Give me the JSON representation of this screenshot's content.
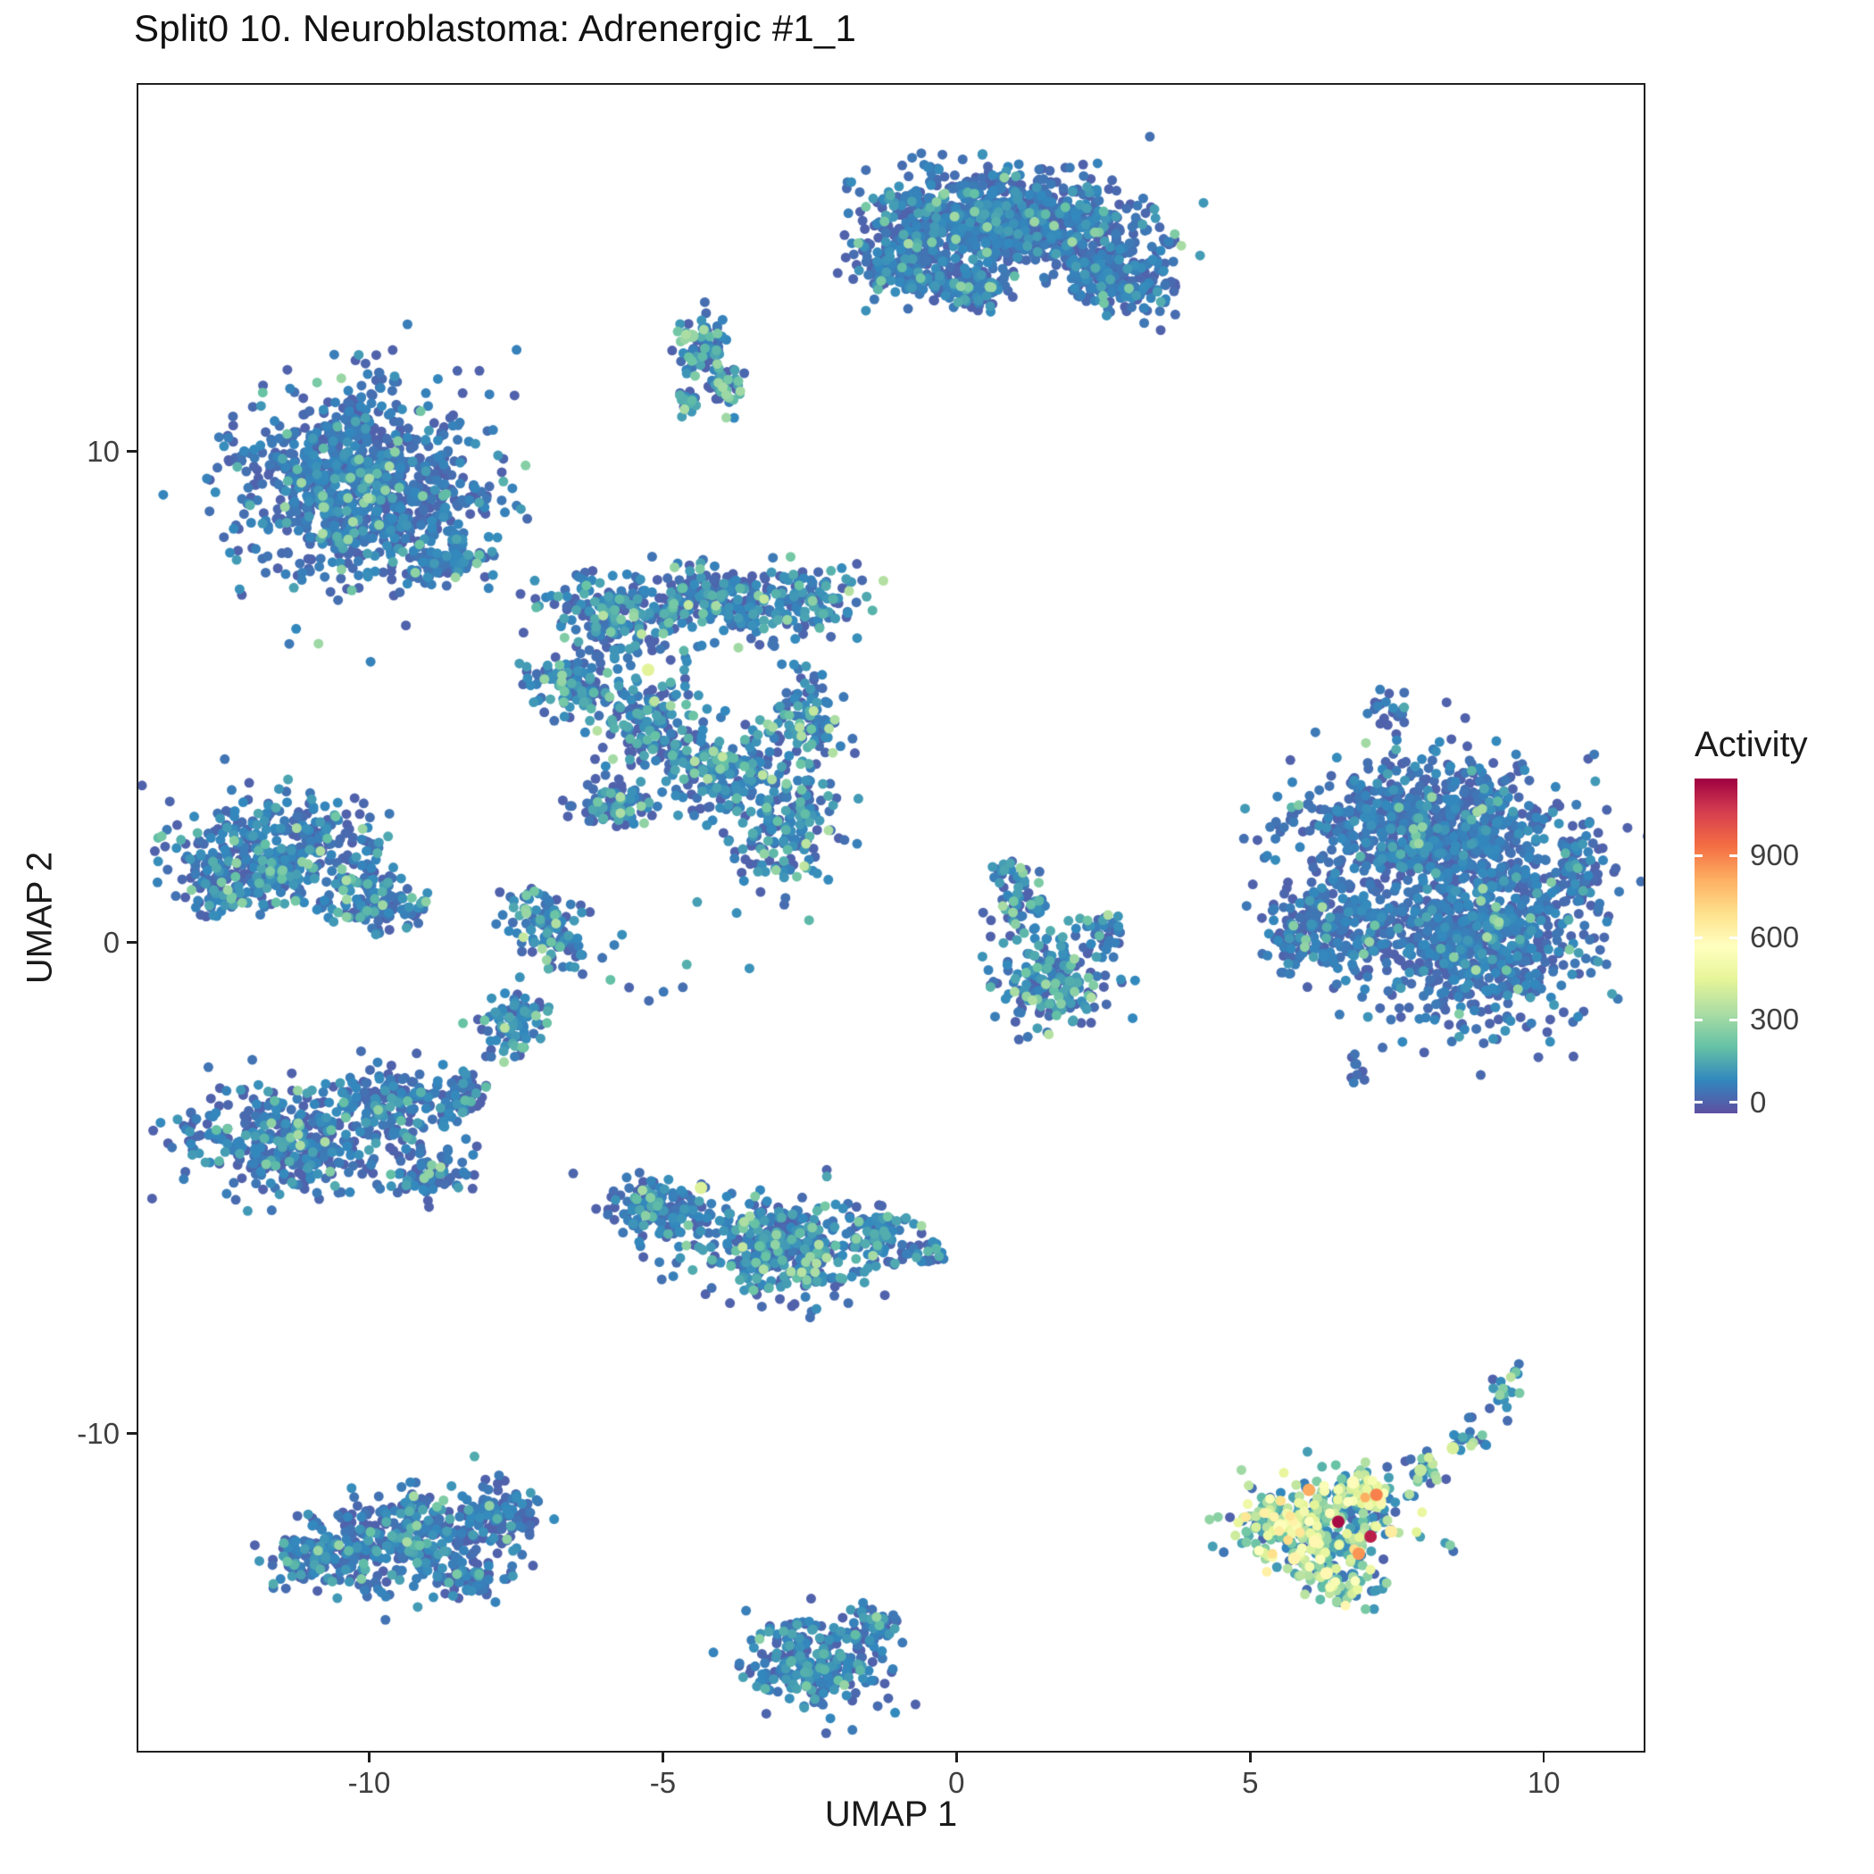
{
  "chart_data": {
    "type": "scatter",
    "subtype": "umap-feature-plot",
    "title": "Split0 10. Neuroblastoma: Adrenergic #1_1",
    "xlabel": "UMAP 1",
    "ylabel": "UMAP 2",
    "xlim": [
      -13.96,
      11.73
    ],
    "ylim": [
      -16.5,
      17.5
    ],
    "x_ticks": [
      -10,
      -5,
      0,
      5,
      10
    ],
    "y_ticks": [
      -10,
      0,
      10
    ],
    "grid": false,
    "point_radius_px": 5.5,
    "seed": 42,
    "legend": {
      "title": "Activity",
      "position": "right",
      "domain": [
        -40,
        1180
      ],
      "ticks": [
        0,
        300,
        600,
        900
      ],
      "colormap": "spectral-reversed",
      "stops": [
        "#5e4fa2",
        "#3288bd",
        "#66c2a5",
        "#abdda4",
        "#e6f598",
        "#ffffbf",
        "#fee08b",
        "#fdae61",
        "#f46d43",
        "#d53e4f",
        "#9e0142"
      ]
    },
    "clusters": [
      {
        "name": "top-large-blob",
        "blobs": [
          [
            0.9,
            14.7,
            2.1,
            0.85,
            -8,
            850
          ],
          [
            -0.9,
            13.9,
            0.9,
            0.7,
            20,
            220
          ],
          [
            2.7,
            13.5,
            0.9,
            0.55,
            -20,
            180
          ],
          [
            0.2,
            13.3,
            0.7,
            0.4,
            0,
            120
          ]
        ],
        "activity": {
          "mean": 35,
          "sd": 45,
          "hi_frac": 0.03,
          "hi_range": [
            150,
            320
          ]
        }
      },
      {
        "name": "small-comma",
        "blobs": [
          [
            -4.35,
            12.2,
            0.35,
            0.5,
            0,
            70
          ],
          [
            -3.95,
            11.3,
            0.3,
            0.45,
            0,
            50
          ],
          [
            -4.6,
            11.0,
            0.2,
            0.3,
            0,
            25
          ]
        ],
        "activity": {
          "mean": 60,
          "sd": 70,
          "hi_frac": 0.18,
          "hi_range": [
            150,
            330
          ]
        }
      },
      {
        "name": "top-left-round",
        "blobs": [
          [
            -10.1,
            9.3,
            1.9,
            1.75,
            0,
            1000
          ],
          [
            -8.6,
            7.8,
            0.6,
            0.5,
            0,
            80
          ]
        ],
        "activity": {
          "mean": 35,
          "sd": 45,
          "hi_frac": 0.04,
          "hi_range": [
            150,
            330
          ]
        }
      },
      {
        "name": "central-network",
        "blobs": [
          [
            -5.6,
            6.7,
            1.3,
            0.75,
            0,
            230
          ],
          [
            -4.2,
            7.1,
            0.9,
            0.55,
            0,
            140
          ],
          [
            -2.7,
            6.9,
            0.95,
            0.65,
            0,
            150
          ],
          [
            -6.6,
            5.3,
            0.65,
            0.6,
            0,
            110
          ],
          [
            -5.3,
            4.5,
            0.8,
            0.85,
            0,
            150
          ],
          [
            -4.0,
            3.5,
            1.0,
            0.75,
            0,
            190
          ],
          [
            -2.6,
            4.4,
            0.55,
            0.95,
            0,
            110
          ],
          [
            -2.9,
            2.3,
            0.8,
            1.15,
            0,
            170
          ],
          [
            -5.8,
            2.8,
            0.6,
            0.5,
            0,
            80
          ],
          [
            -6.9,
            0.3,
            0.5,
            0.85,
            35,
            110
          ],
          [
            -7.6,
            -1.6,
            0.5,
            0.6,
            0,
            90
          ],
          [
            -5.5,
            -0.3,
            1.6,
            1.1,
            0,
            14
          ]
        ],
        "activity": {
          "mean": 55,
          "sd": 65,
          "hi_frac": 0.07,
          "hi_range": [
            150,
            380
          ]
        }
      },
      {
        "name": "left-mid-cluster",
        "blobs": [
          [
            -11.5,
            1.8,
            1.45,
            1.05,
            0,
            400
          ],
          [
            -9.9,
            0.9,
            0.7,
            0.6,
            0,
            120
          ],
          [
            -12.6,
            1.1,
            0.5,
            0.5,
            0,
            70
          ]
        ],
        "activity": {
          "mean": 40,
          "sd": 55,
          "hi_frac": 0.05,
          "hi_range": [
            150,
            330
          ]
        }
      },
      {
        "name": "left-lower-arrow",
        "blobs": [
          [
            -11.4,
            -4.0,
            1.5,
            0.95,
            0,
            400
          ],
          [
            -9.5,
            -3.3,
            0.85,
            0.65,
            0,
            150
          ],
          [
            -9.0,
            -4.7,
            0.65,
            0.5,
            0,
            90
          ],
          [
            -8.3,
            -3.0,
            0.4,
            0.4,
            0,
            40
          ]
        ],
        "activity": {
          "mean": 40,
          "sd": 55,
          "hi_frac": 0.05,
          "hi_range": [
            150,
            330
          ]
        }
      },
      {
        "name": "bottom-mid-left-cluster",
        "blobs": [
          [
            -3.0,
            -6.2,
            1.5,
            0.85,
            -5,
            400
          ],
          [
            -5.0,
            -5.4,
            0.85,
            0.6,
            0,
            140
          ],
          [
            -1.3,
            -5.9,
            0.5,
            0.5,
            0,
            70
          ],
          [
            -0.5,
            -6.3,
            0.3,
            0.3,
            0,
            25
          ]
        ],
        "activity": {
          "mean": 55,
          "sd": 65,
          "hi_frac": 0.07,
          "hi_range": [
            150,
            380
          ]
        }
      },
      {
        "name": "center-small-cluster",
        "blobs": [
          [
            1.7,
            -0.8,
            0.85,
            0.9,
            0,
            190
          ],
          [
            1.1,
            0.8,
            0.4,
            0.6,
            0,
            55
          ],
          [
            0.85,
            1.5,
            0.25,
            0.3,
            0,
            22
          ],
          [
            2.5,
            0.3,
            0.35,
            0.45,
            0,
            35
          ]
        ],
        "activity": {
          "mean": 55,
          "sd": 65,
          "hi_frac": 0.08,
          "hi_range": [
            150,
            350
          ]
        }
      },
      {
        "name": "right-large-cluster",
        "blobs": [
          [
            8.1,
            2.3,
            2.1,
            1.3,
            -5,
            850
          ],
          [
            8.9,
            0.0,
            1.7,
            1.45,
            0,
            700
          ],
          [
            6.5,
            0.4,
            0.9,
            1.0,
            0,
            200
          ],
          [
            5.7,
            0.1,
            0.4,
            0.9,
            0,
            50
          ],
          [
            10.6,
            1.4,
            0.5,
            0.8,
            0,
            70
          ],
          [
            7.4,
            4.7,
            0.3,
            0.35,
            0,
            25
          ],
          [
            6.9,
            -2.6,
            0.3,
            0.3,
            0,
            10
          ]
        ],
        "activity": {
          "mean": 35,
          "sd": 45,
          "hi_frac": 0.025,
          "hi_range": [
            150,
            320
          ]
        }
      },
      {
        "name": "bottom-left-cluster",
        "blobs": [
          [
            -9.5,
            -12.2,
            1.7,
            0.85,
            8,
            420
          ],
          [
            -7.7,
            -11.6,
            0.6,
            0.5,
            0,
            80
          ],
          [
            -11.1,
            -12.5,
            0.5,
            0.45,
            0,
            60
          ],
          [
            -8.3,
            -13.0,
            0.5,
            0.35,
            0,
            60
          ]
        ],
        "activity": {
          "mean": 40,
          "sd": 55,
          "hi_frac": 0.04,
          "hi_range": [
            150,
            330
          ]
        }
      },
      {
        "name": "bottom-middle-cluster",
        "blobs": [
          [
            -2.4,
            -14.7,
            1.05,
            0.75,
            0,
            260
          ],
          [
            -1.4,
            -13.9,
            0.45,
            0.4,
            0,
            50
          ]
        ],
        "activity": {
          "mean": 50,
          "sd": 60,
          "hi_frac": 0.05,
          "hi_range": [
            150,
            330
          ]
        }
      },
      {
        "name": "hot-triangle-cluster",
        "blobs": [
          [
            6.2,
            -12.0,
            1.1,
            0.85,
            0,
            300
          ],
          [
            6.9,
            -11.2,
            0.6,
            0.45,
            0,
            80
          ],
          [
            5.4,
            -11.7,
            0.5,
            0.4,
            0,
            60
          ],
          [
            6.6,
            -13.1,
            0.6,
            0.35,
            0,
            60
          ]
        ],
        "activity": {
          "mean": 290,
          "sd": 150,
          "lo_frac": 0.3,
          "lo_range": [
            0,
            140
          ],
          "hi_frac": 0.05,
          "hi_range": [
            450,
            700
          ]
        }
      },
      {
        "name": "hot-tail",
        "blobs": [
          [
            8.0,
            -10.7,
            0.35,
            0.3,
            0,
            22
          ],
          [
            8.7,
            -10.1,
            0.3,
            0.35,
            0,
            18
          ],
          [
            9.3,
            -9.3,
            0.25,
            0.45,
            0,
            16
          ],
          [
            9.45,
            -8.7,
            0.15,
            0.25,
            0,
            6
          ],
          [
            8.3,
            -12.3,
            0.15,
            0.15,
            0,
            3
          ]
        ],
        "activity": {
          "mean": 200,
          "sd": 130,
          "lo_frac": 0.45,
          "lo_range": [
            0,
            110
          ]
        }
      }
    ],
    "highlight_points": [
      {
        "x": 6.5,
        "y": -11.8,
        "v": 1160
      },
      {
        "x": 7.05,
        "y": -12.1,
        "v": 1120
      },
      {
        "x": 7.15,
        "y": -11.25,
        "v": 900
      },
      {
        "x": 6.0,
        "y": -11.15,
        "v": 820
      },
      {
        "x": 6.85,
        "y": -12.45,
        "v": 860
      },
      {
        "x": 5.75,
        "y": -12.55,
        "v": 620
      },
      {
        "x": 6.3,
        "y": -12.85,
        "v": 600
      },
      {
        "x": 6.75,
        "y": -11.0,
        "v": 580
      },
      {
        "x": 5.5,
        "y": -11.9,
        "v": 560
      },
      {
        "x": 7.4,
        "y": -12.0,
        "v": 640
      },
      {
        "x": 6.1,
        "y": -12.2,
        "v": 600
      },
      {
        "x": 7.9,
        "y": -10.75,
        "v": 380
      },
      {
        "x": 8.45,
        "y": -10.3,
        "v": 420
      },
      {
        "x": -5.25,
        "y": 5.55,
        "v": 440
      },
      {
        "x": -4.35,
        "y": -5.0,
        "v": 430
      },
      {
        "x": -4.5,
        "y": 12.35,
        "v": 290
      }
    ]
  }
}
